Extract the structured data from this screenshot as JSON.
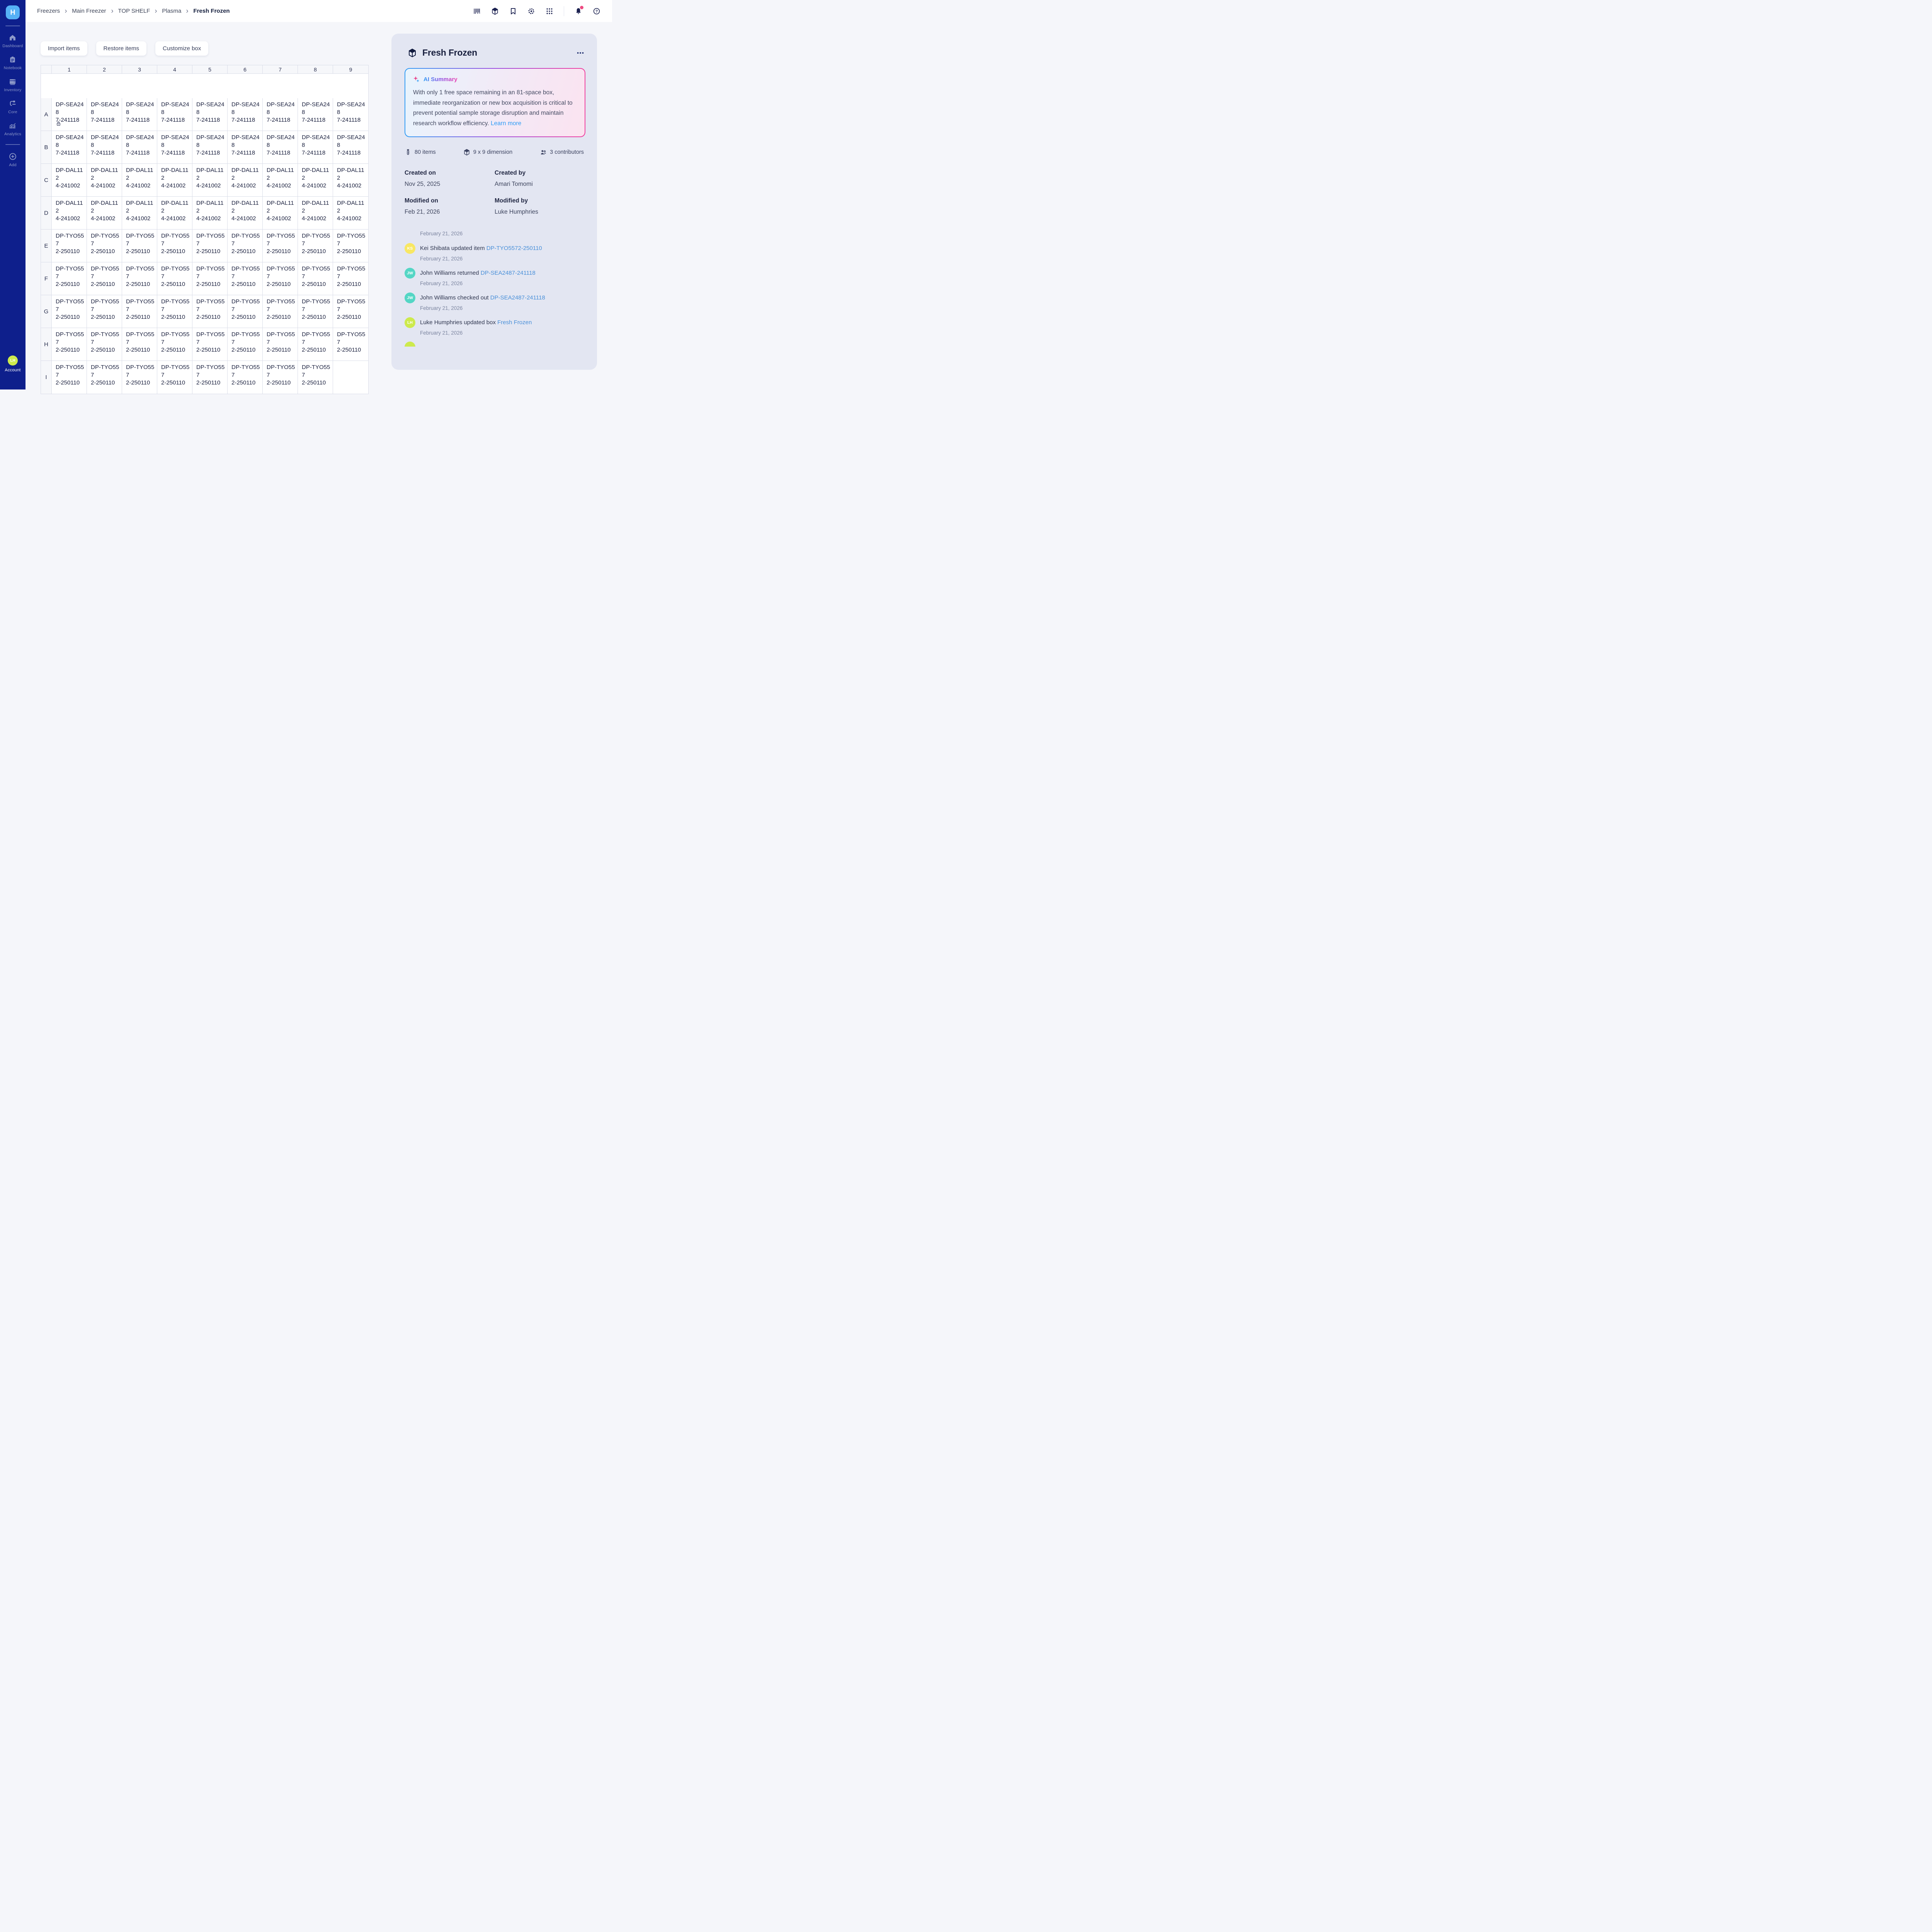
{
  "app": {
    "logo_initial": "H"
  },
  "sidebar": {
    "items": [
      {
        "label": "Dashboard",
        "icon": "home-icon"
      },
      {
        "label": "Notebook",
        "icon": "notebook-icon"
      },
      {
        "label": "Inventory",
        "icon": "inventory-icon"
      },
      {
        "label": "Core",
        "icon": "core-icon"
      },
      {
        "label": "Analytics",
        "icon": "analytics-icon"
      }
    ],
    "add_label": "Add",
    "account_label": "Account",
    "account_initials": "LH",
    "account_color": "#cdea4d"
  },
  "breadcrumb": [
    "Freezers",
    "Main Freezer",
    "TOP SHELF",
    "Plasma",
    "Fresh Frozen"
  ],
  "topbar_icons": [
    "barcode-icon",
    "cube-icon",
    "bookmark-icon",
    "gear-icon",
    "apps-grid-icon",
    "divider",
    "bell-icon",
    "help-icon"
  ],
  "notification_dot_color": "#ed4b81",
  "toolbar": {
    "import_label": "Import items",
    "restore_label": "Restore items",
    "customize_label": "Customize box"
  },
  "grid": {
    "columns": [
      "1",
      "2",
      "3",
      "4",
      "5",
      "6",
      "7",
      "8",
      "9"
    ],
    "rows": [
      {
        "label": "A",
        "locked_cell": 0,
        "cells": [
          "DP-SEA2487-241118",
          "DP-SEA2487-241118",
          "DP-SEA2487-241118",
          "DP-SEA2487-241118",
          "DP-SEA2487-241118",
          "DP-SEA2487-241118",
          "DP-SEA2487-241118",
          "DP-SEA2487-241118",
          "DP-SEA2487-241118"
        ]
      },
      {
        "label": "B",
        "cells": [
          "DP-SEA2487-241118",
          "DP-SEA2487-241118",
          "DP-SEA2487-241118",
          "DP-SEA2487-241118",
          "DP-SEA2487-241118",
          "DP-SEA2487-241118",
          "DP-SEA2487-241118",
          "DP-SEA2487-241118",
          "DP-SEA2487-241118"
        ]
      },
      {
        "label": "C",
        "cells": [
          "DP-DAL1124-241002",
          "DP-DAL1124-241002",
          "DP-DAL1124-241002",
          "DP-DAL1124-241002",
          "DP-DAL1124-241002",
          "DP-DAL1124-241002",
          "DP-DAL1124-241002",
          "DP-DAL1124-241002",
          "DP-DAL1124-241002"
        ]
      },
      {
        "label": "D",
        "cells": [
          "DP-DAL1124-241002",
          "DP-DAL1124-241002",
          "DP-DAL1124-241002",
          "DP-DAL1124-241002",
          "DP-DAL1124-241002",
          "DP-DAL1124-241002",
          "DP-DAL1124-241002",
          "DP-DAL1124-241002",
          "DP-DAL1124-241002"
        ]
      },
      {
        "label": "E",
        "cells": [
          "DP-TYO5572-250110",
          "DP-TYO5572-250110",
          "DP-TYO5572-250110",
          "DP-TYO5572-250110",
          "DP-TYO5572-250110",
          "DP-TYO5572-250110",
          "DP-TYO5572-250110",
          "DP-TYO5572-250110",
          "DP-TYO5572-250110"
        ]
      },
      {
        "label": "F",
        "cells": [
          "DP-TYO5572-250110",
          "DP-TYO5572-250110",
          "DP-TYO5572-250110",
          "DP-TYO5572-250110",
          "DP-TYO5572-250110",
          "DP-TYO5572-250110",
          "DP-TYO5572-250110",
          "DP-TYO5572-250110",
          "DP-TYO5572-250110"
        ]
      },
      {
        "label": "G",
        "cells": [
          "DP-TYO5572-250110",
          "DP-TYO5572-250110",
          "DP-TYO5572-250110",
          "DP-TYO5572-250110",
          "DP-TYO5572-250110",
          "DP-TYO5572-250110",
          "DP-TYO5572-250110",
          "DP-TYO5572-250110",
          "DP-TYO5572-250110"
        ]
      },
      {
        "label": "H",
        "cells": [
          "DP-TYO5572-250110",
          "DP-TYO5572-250110",
          "DP-TYO5572-250110",
          "DP-TYO5572-250110",
          "DP-TYO5572-250110",
          "DP-TYO5572-250110",
          "DP-TYO5572-250110",
          "DP-TYO5572-250110",
          "DP-TYO5572-250110"
        ]
      },
      {
        "label": "I",
        "cells": [
          "DP-TYO5572-250110",
          "DP-TYO5572-250110",
          "DP-TYO5572-250110",
          "DP-TYO5572-250110",
          "DP-TYO5572-250110",
          "DP-TYO5572-250110",
          "DP-TYO5572-250110",
          "DP-TYO5572-250110",
          ""
        ]
      }
    ]
  },
  "panel": {
    "title": "Fresh Frozen",
    "ai": {
      "title": "AI Summary",
      "body": "With only 1 free space remaining in an 81-space box, immediate reorganization or new box acquisition is critical to prevent potential sample storage disruption and maintain research workflow efficiency. ",
      "link_label": "Learn more"
    },
    "stats": [
      {
        "icon": "tube-icon",
        "label": "80 items"
      },
      {
        "icon": "cube-icon",
        "label": "9 x 9 dimension"
      },
      {
        "icon": "people-icon",
        "label": "3 contributors"
      }
    ],
    "meta": {
      "created_on_label": "Created on",
      "created_on": "Nov 25, 2025",
      "created_by_label": "Created by",
      "created_by": "Amari Tomomi",
      "modified_on_label": "Modified on",
      "modified_on": "Feb 21, 2026",
      "modified_by_label": "Modified by",
      "modified_by": "Luke Humphries"
    },
    "activity": {
      "date_header": "February 21, 2026",
      "items": [
        {
          "initials": "KS",
          "color": "#f8e763",
          "text_prefix": "Kei Shibata updated item ",
          "link_text": "DP-TYO5572-250110",
          "date": "February 21, 2026"
        },
        {
          "initials": "JW",
          "color": "#54d6c5",
          "text_prefix": "John Williams returned ",
          "link_text": "DP-SEA2487-241118",
          "date": "February 21, 2026"
        },
        {
          "initials": "JW",
          "color": "#54d6c5",
          "text_prefix": "John Williams checked out ",
          "link_text": "DP-SEA2487-241118",
          "date": "February 21, 2026"
        },
        {
          "initials": "LH",
          "color": "#cdea4d",
          "text_prefix": "Luke Humphries updated box ",
          "link_text": "Fresh Frozen",
          "date": "February 21, 2026"
        }
      ],
      "partial_avatar_color": "#cdea4d"
    }
  },
  "colors": {
    "sidebar_bg": "#0e1f8c",
    "logo_bg": "#56b1f6",
    "panel_bg": "#e3e6f2",
    "ai_gradient": [
      "#2e9cf5",
      "#9b4ae0",
      "#f23f9e"
    ],
    "activity_link": "#4a90d9",
    "learn_more_link": "#2e9cf5"
  }
}
